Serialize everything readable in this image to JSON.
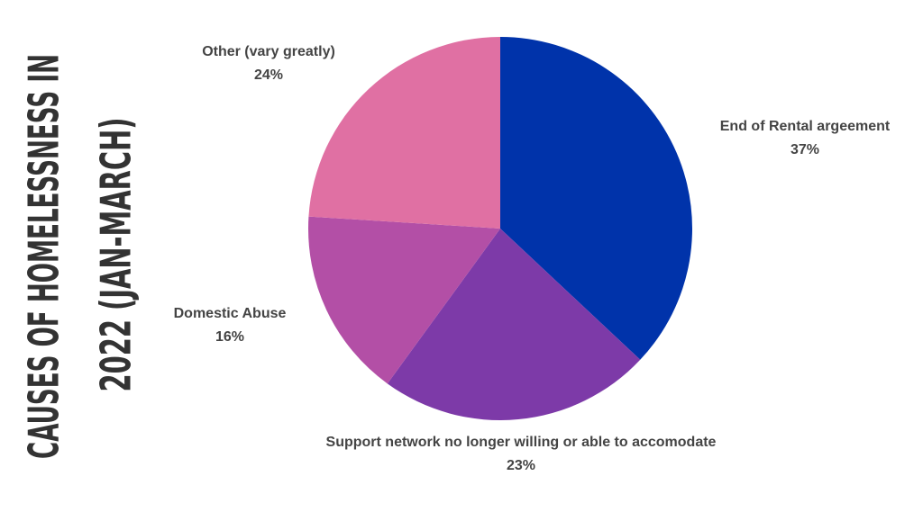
{
  "chart_data": {
    "type": "pie",
    "title": [
      "CAUSES OF HOMELESSNESS IN",
      "2022 (JAN-MARCH)"
    ],
    "categories": [
      "End of Rental argeement",
      "Support network no longer willing or able to accomodate",
      "Domestic Abuse",
      "Other (vary greatly)"
    ],
    "values": [
      37,
      23,
      16,
      24
    ],
    "value_labels": [
      "37%",
      "23%",
      "16%",
      "24%"
    ],
    "colors": [
      "#0033aa",
      "#7d3aa8",
      "#b34fa6",
      "#e070a3"
    ]
  }
}
